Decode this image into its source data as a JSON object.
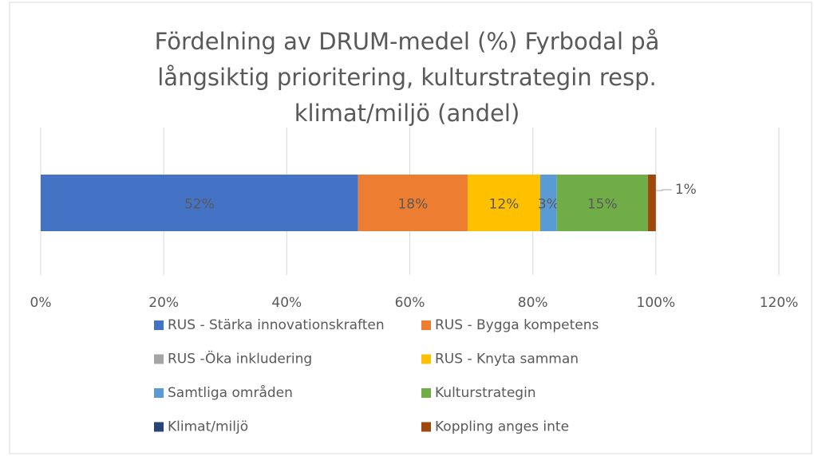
{
  "chart_data": {
    "type": "stacked-barh",
    "title": "Fördelning av DRUM-medel (%) Fyrbodal på långsiktig prioritering, kulturstrategin resp. klimat/miljö (andel)",
    "categories": [
      null
    ],
    "series": [
      {
        "name": "RUS - Stärka innovationskraften",
        "color": "#4472c4",
        "values": [
          51.6
        ],
        "value_labels": [
          "52%"
        ]
      },
      {
        "name": "RUS - Bygga kompetens",
        "color": "#ed7d31",
        "values": [
          17.8
        ],
        "value_labels": [
          "18%"
        ]
      },
      {
        "name": "RUS -Öka inkludering",
        "color": "#a5a5a5",
        "values": [
          0
        ],
        "value_labels": [
          null
        ]
      },
      {
        "name": "RUS - Knyta samman",
        "color": "#ffc000",
        "values": [
          11.8
        ],
        "value_labels": [
          "12%"
        ]
      },
      {
        "name": "Samtliga områden",
        "color": "#5b9bd5",
        "values": [
          2.7
        ],
        "value_labels": [
          "3%"
        ]
      },
      {
        "name": "Kulturstrategin",
        "color": "#70ad47",
        "values": [
          14.8
        ],
        "value_labels": [
          "15%"
        ]
      },
      {
        "name": "Klimat/miljö",
        "color": "#264478",
        "values": [
          0
        ],
        "value_labels": [
          null
        ]
      },
      {
        "name": "Koppling anges inte",
        "color": "#9e480e",
        "values": [
          1.3
        ],
        "value_labels": [
          "1%"
        ]
      }
    ],
    "xlim": [
      0,
      120
    ],
    "xticks": [
      {
        "value": 0,
        "label": "0%"
      },
      {
        "value": 20,
        "label": "20%"
      },
      {
        "value": 40,
        "label": "40%"
      },
      {
        "value": 60,
        "label": "60%"
      },
      {
        "value": 80,
        "label": "80%"
      },
      {
        "value": 100,
        "label": "100%"
      },
      {
        "value": 120,
        "label": "120%"
      }
    ],
    "grid": true,
    "legend": "bottom"
  }
}
